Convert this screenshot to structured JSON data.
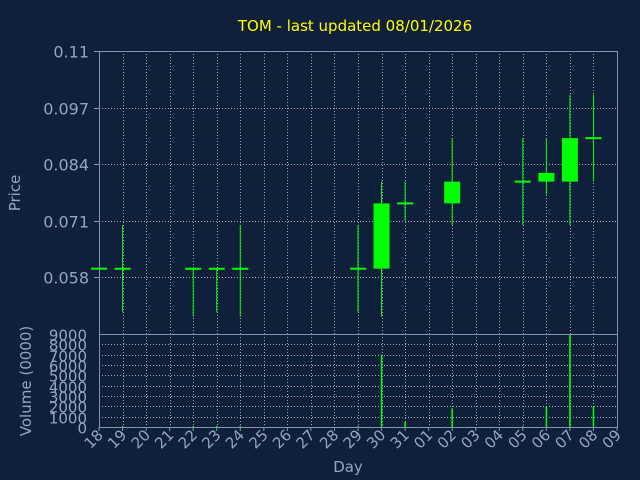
{
  "colors": {
    "background": "#10203a",
    "panel_border": "#7f96b4",
    "grid": "#c8d4e6",
    "axis_text": "#8fa6c4",
    "title": "#ffff00",
    "candle": "#00ff00",
    "volume_bar": "#00ff00"
  },
  "chart_data": [
    {
      "type": "candlestick",
      "title": "TOM - last updated 08/01/2026",
      "xlabel": "",
      "ylabel": "Price",
      "ylim": [
        0.045,
        0.11
      ],
      "y_ticks": [
        "0.11",
        "0.097",
        "0.084",
        "0.071",
        "0.058"
      ],
      "grid": true,
      "categories": [
        "18",
        "19",
        "20",
        "21",
        "22",
        "23",
        "24",
        "25",
        "26",
        "27",
        "28",
        "29",
        "30",
        "31",
        "01",
        "02",
        "03",
        "04",
        "05",
        "06",
        "07",
        "08",
        "09"
      ],
      "candles": [
        {
          "x": "18",
          "open": 0.06,
          "high": 0.06,
          "low": 0.06,
          "close": 0.06
        },
        {
          "x": "19",
          "open": 0.06,
          "high": 0.07,
          "low": 0.05,
          "close": 0.06
        },
        {
          "x": "22",
          "open": 0.06,
          "high": 0.06,
          "low": 0.049,
          "close": 0.06
        },
        {
          "x": "23",
          "open": 0.06,
          "high": 0.06,
          "low": 0.05,
          "close": 0.06
        },
        {
          "x": "24",
          "open": 0.06,
          "high": 0.07,
          "low": 0.049,
          "close": 0.06
        },
        {
          "x": "29",
          "open": 0.06,
          "high": 0.07,
          "low": 0.05,
          "close": 0.06
        },
        {
          "x": "30",
          "open": 0.06,
          "high": 0.08,
          "low": 0.049,
          "close": 0.075
        },
        {
          "x": "31",
          "open": 0.075,
          "high": 0.08,
          "low": 0.071,
          "close": 0.075
        },
        {
          "x": "02",
          "open": 0.075,
          "high": 0.09,
          "low": 0.07,
          "close": 0.08
        },
        {
          "x": "05",
          "open": 0.08,
          "high": 0.09,
          "low": 0.07,
          "close": 0.08
        },
        {
          "x": "06",
          "open": 0.08,
          "high": 0.09,
          "low": 0.077,
          "close": 0.082
        },
        {
          "x": "07",
          "open": 0.08,
          "high": 0.1,
          "low": 0.07,
          "close": 0.09
        },
        {
          "x": "08",
          "open": 0.09,
          "high": 0.1,
          "low": 0.08,
          "close": 0.09
        }
      ]
    },
    {
      "type": "bar",
      "title": "",
      "xlabel": "Day",
      "ylabel": "Volume (0000)",
      "ylim": [
        0,
        9000
      ],
      "y_ticks": [
        "9000",
        "8000",
        "7000",
        "6000",
        "5000",
        "4000",
        "3000",
        "2000",
        "1000",
        "0"
      ],
      "grid": true,
      "categories": [
        "18",
        "19",
        "20",
        "21",
        "22",
        "23",
        "24",
        "25",
        "26",
        "27",
        "28",
        "29",
        "30",
        "31",
        "01",
        "02",
        "03",
        "04",
        "05",
        "06",
        "07",
        "08",
        "09"
      ],
      "values": [
        0,
        100,
        0,
        0,
        100,
        100,
        100,
        0,
        0,
        0,
        0,
        100,
        7000,
        500,
        0,
        1800,
        0,
        0,
        100,
        2000,
        9000,
        2000,
        0
      ]
    }
  ]
}
